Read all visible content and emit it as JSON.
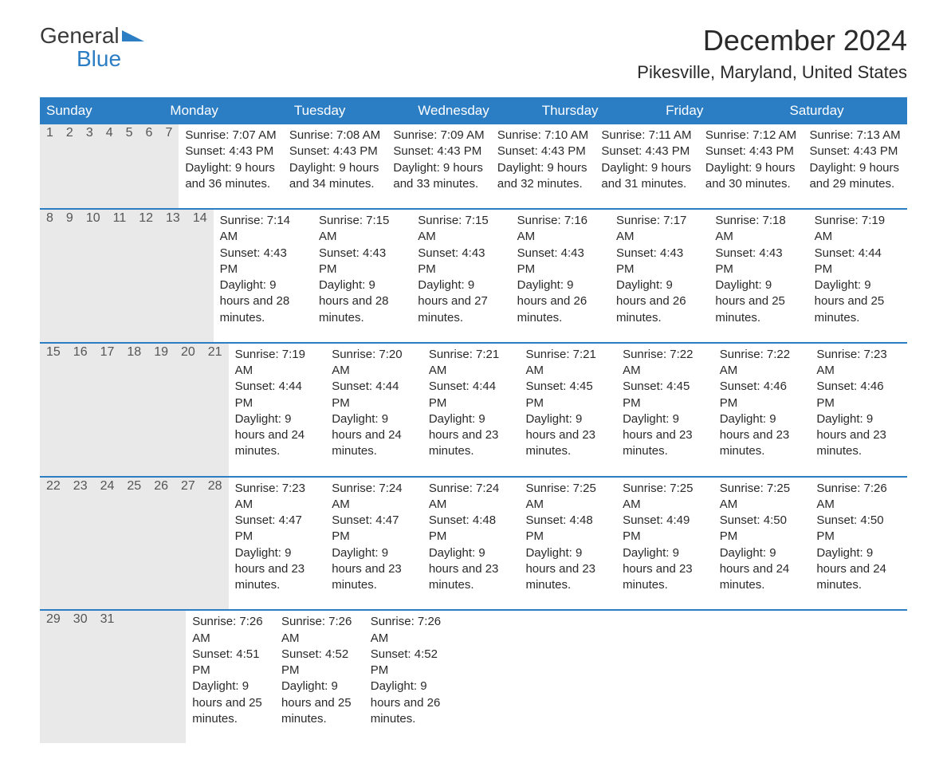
{
  "logo": {
    "text_general": "General",
    "text_blue": "Blue",
    "flag_color": "#2b7dc4"
  },
  "title": "December 2024",
  "location": "Pikesville, Maryland, United States",
  "colors": {
    "header_bg": "#2b7dc4",
    "header_text": "#ffffff",
    "daynum_bg": "#e9e9e9",
    "week_border": "#2b7dc4",
    "text": "#2a2a2a"
  },
  "day_names": [
    "Sunday",
    "Monday",
    "Tuesday",
    "Wednesday",
    "Thursday",
    "Friday",
    "Saturday"
  ],
  "weeks": [
    [
      {
        "day": "1",
        "sunrise": "7:07 AM",
        "sunset": "4:43 PM",
        "daylight": "9 hours and 36 minutes."
      },
      {
        "day": "2",
        "sunrise": "7:08 AM",
        "sunset": "4:43 PM",
        "daylight": "9 hours and 34 minutes."
      },
      {
        "day": "3",
        "sunrise": "7:09 AM",
        "sunset": "4:43 PM",
        "daylight": "9 hours and 33 minutes."
      },
      {
        "day": "4",
        "sunrise": "7:10 AM",
        "sunset": "4:43 PM",
        "daylight": "9 hours and 32 minutes."
      },
      {
        "day": "5",
        "sunrise": "7:11 AM",
        "sunset": "4:43 PM",
        "daylight": "9 hours and 31 minutes."
      },
      {
        "day": "6",
        "sunrise": "7:12 AM",
        "sunset": "4:43 PM",
        "daylight": "9 hours and 30 minutes."
      },
      {
        "day": "7",
        "sunrise": "7:13 AM",
        "sunset": "4:43 PM",
        "daylight": "9 hours and 29 minutes."
      }
    ],
    [
      {
        "day": "8",
        "sunrise": "7:14 AM",
        "sunset": "4:43 PM",
        "daylight": "9 hours and 28 minutes."
      },
      {
        "day": "9",
        "sunrise": "7:15 AM",
        "sunset": "4:43 PM",
        "daylight": "9 hours and 28 minutes."
      },
      {
        "day": "10",
        "sunrise": "7:15 AM",
        "sunset": "4:43 PM",
        "daylight": "9 hours and 27 minutes."
      },
      {
        "day": "11",
        "sunrise": "7:16 AM",
        "sunset": "4:43 PM",
        "daylight": "9 hours and 26 minutes."
      },
      {
        "day": "12",
        "sunrise": "7:17 AM",
        "sunset": "4:43 PM",
        "daylight": "9 hours and 26 minutes."
      },
      {
        "day": "13",
        "sunrise": "7:18 AM",
        "sunset": "4:43 PM",
        "daylight": "9 hours and 25 minutes."
      },
      {
        "day": "14",
        "sunrise": "7:19 AM",
        "sunset": "4:44 PM",
        "daylight": "9 hours and 25 minutes."
      }
    ],
    [
      {
        "day": "15",
        "sunrise": "7:19 AM",
        "sunset": "4:44 PM",
        "daylight": "9 hours and 24 minutes."
      },
      {
        "day": "16",
        "sunrise": "7:20 AM",
        "sunset": "4:44 PM",
        "daylight": "9 hours and 24 minutes."
      },
      {
        "day": "17",
        "sunrise": "7:21 AM",
        "sunset": "4:44 PM",
        "daylight": "9 hours and 23 minutes."
      },
      {
        "day": "18",
        "sunrise": "7:21 AM",
        "sunset": "4:45 PM",
        "daylight": "9 hours and 23 minutes."
      },
      {
        "day": "19",
        "sunrise": "7:22 AM",
        "sunset": "4:45 PM",
        "daylight": "9 hours and 23 minutes."
      },
      {
        "day": "20",
        "sunrise": "7:22 AM",
        "sunset": "4:46 PM",
        "daylight": "9 hours and 23 minutes."
      },
      {
        "day": "21",
        "sunrise": "7:23 AM",
        "sunset": "4:46 PM",
        "daylight": "9 hours and 23 minutes."
      }
    ],
    [
      {
        "day": "22",
        "sunrise": "7:23 AM",
        "sunset": "4:47 PM",
        "daylight": "9 hours and 23 minutes."
      },
      {
        "day": "23",
        "sunrise": "7:24 AM",
        "sunset": "4:47 PM",
        "daylight": "9 hours and 23 minutes."
      },
      {
        "day": "24",
        "sunrise": "7:24 AM",
        "sunset": "4:48 PM",
        "daylight": "9 hours and 23 minutes."
      },
      {
        "day": "25",
        "sunrise": "7:25 AM",
        "sunset": "4:48 PM",
        "daylight": "9 hours and 23 minutes."
      },
      {
        "day": "26",
        "sunrise": "7:25 AM",
        "sunset": "4:49 PM",
        "daylight": "9 hours and 23 minutes."
      },
      {
        "day": "27",
        "sunrise": "7:25 AM",
        "sunset": "4:50 PM",
        "daylight": "9 hours and 24 minutes."
      },
      {
        "day": "28",
        "sunrise": "7:26 AM",
        "sunset": "4:50 PM",
        "daylight": "9 hours and 24 minutes."
      }
    ],
    [
      {
        "day": "29",
        "sunrise": "7:26 AM",
        "sunset": "4:51 PM",
        "daylight": "9 hours and 25 minutes."
      },
      {
        "day": "30",
        "sunrise": "7:26 AM",
        "sunset": "4:52 PM",
        "daylight": "9 hours and 25 minutes."
      },
      {
        "day": "31",
        "sunrise": "7:26 AM",
        "sunset": "4:52 PM",
        "daylight": "9 hours and 26 minutes."
      },
      null,
      null,
      null,
      null
    ]
  ],
  "labels": {
    "sunrise": "Sunrise:",
    "sunset": "Sunset:",
    "daylight": "Daylight:"
  }
}
